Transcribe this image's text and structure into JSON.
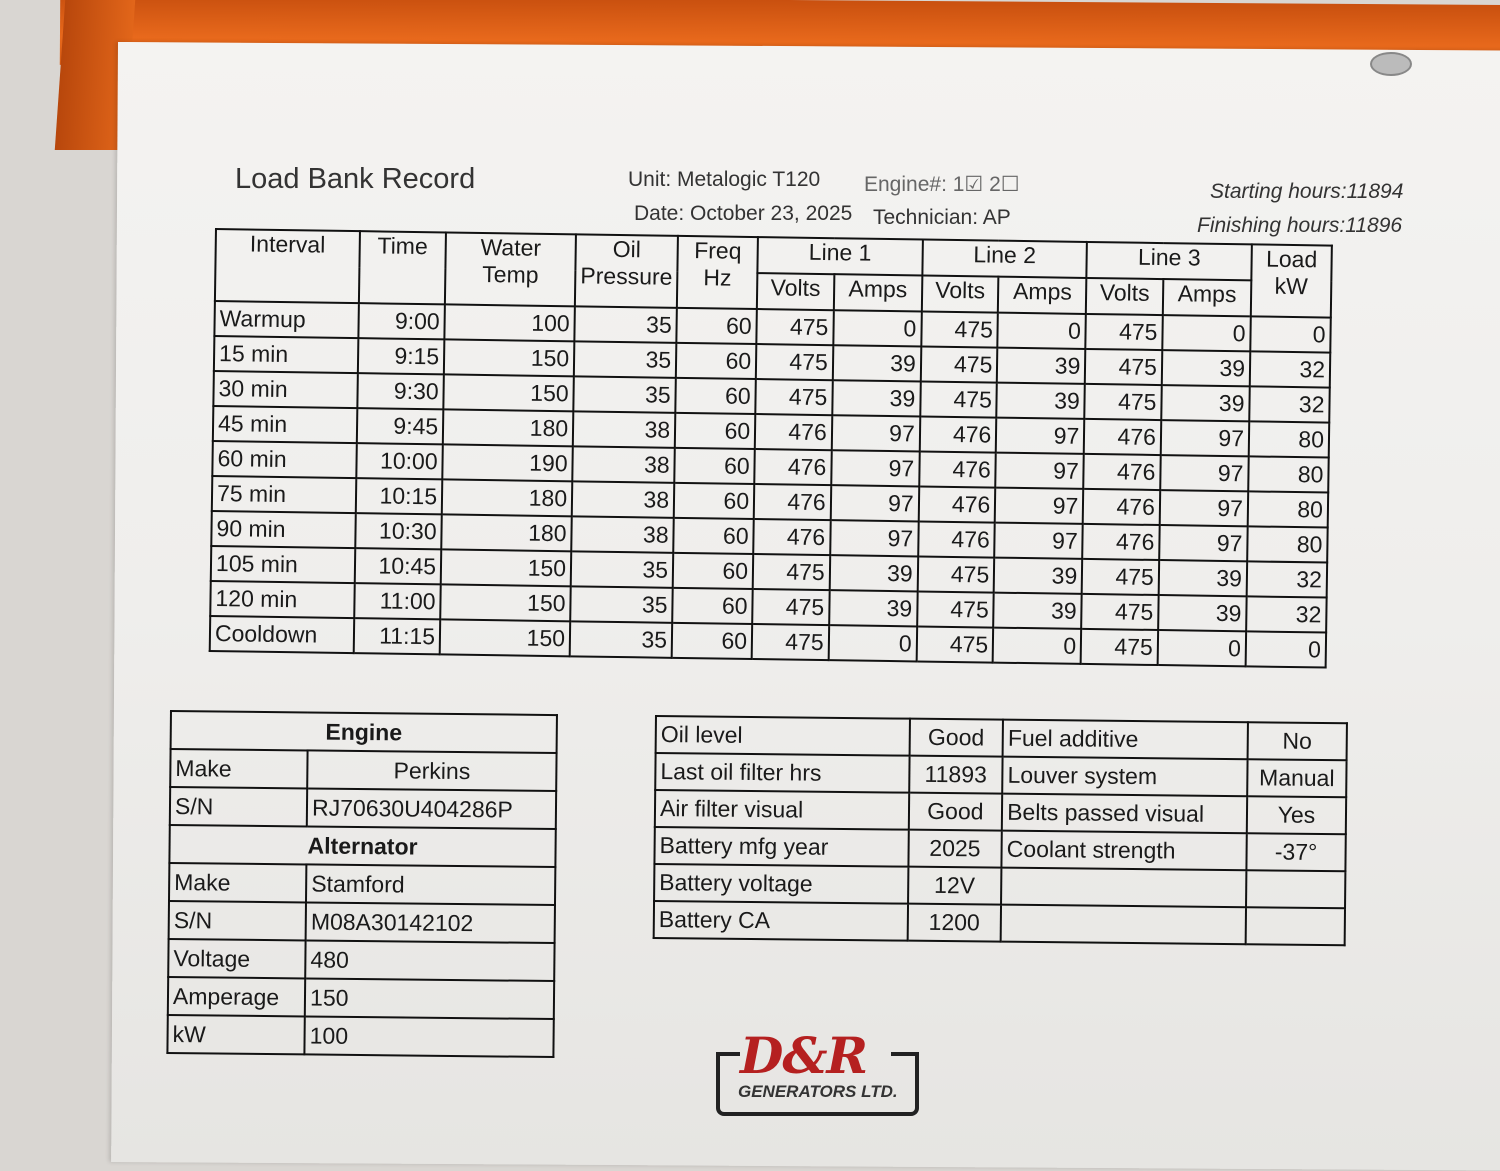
{
  "document": {
    "title": "Load Bank Record",
    "unit": "Unit: Metalogic T120",
    "engine_no": "Engine#: 1☑ 2☐",
    "date": "Date: October 23, 2025",
    "technician": "Technician: AP",
    "starting_hours": "Starting hours:11894",
    "finishing_hours": "Finishing hours:11896"
  },
  "load_table": {
    "headers": {
      "interval": "Interval",
      "time": "Time",
      "water_temp": "Water Temp",
      "oil_pressure": "Oil Pressure",
      "freq": "Freq Hz",
      "line1": "Line 1",
      "line2": "Line 2",
      "line3": "Line 3",
      "load": "Load kW",
      "volts": "Volts",
      "amps": "Amps"
    },
    "rows": [
      [
        "Warmup",
        "9:00",
        "100",
        "35",
        "60",
        "475",
        "0",
        "475",
        "0",
        "475",
        "0",
        "0"
      ],
      [
        "15 min",
        "9:15",
        "150",
        "35",
        "60",
        "475",
        "39",
        "475",
        "39",
        "475",
        "39",
        "32"
      ],
      [
        "30 min",
        "9:30",
        "150",
        "35",
        "60",
        "475",
        "39",
        "475",
        "39",
        "475",
        "39",
        "32"
      ],
      [
        "45 min",
        "9:45",
        "180",
        "38",
        "60",
        "476",
        "97",
        "476",
        "97",
        "476",
        "97",
        "80"
      ],
      [
        "60 min",
        "10:00",
        "190",
        "38",
        "60",
        "476",
        "97",
        "476",
        "97",
        "476",
        "97",
        "80"
      ],
      [
        "75 min",
        "10:15",
        "180",
        "38",
        "60",
        "476",
        "97",
        "476",
        "97",
        "476",
        "97",
        "80"
      ],
      [
        "90 min",
        "10:30",
        "180",
        "38",
        "60",
        "476",
        "97",
        "476",
        "97",
        "476",
        "97",
        "80"
      ],
      [
        "105 min",
        "10:45",
        "150",
        "35",
        "60",
        "475",
        "39",
        "475",
        "39",
        "475",
        "39",
        "32"
      ],
      [
        "120 min",
        "11:00",
        "150",
        "35",
        "60",
        "475",
        "39",
        "475",
        "39",
        "475",
        "39",
        "32"
      ],
      [
        "Cooldown",
        "11:15",
        "150",
        "35",
        "60",
        "475",
        "0",
        "475",
        "0",
        "475",
        "0",
        "0"
      ]
    ]
  },
  "engine_table": {
    "engine_heading": "Engine",
    "engine_make_label": "Make",
    "engine_make": "Perkins",
    "engine_sn_label": "S/N",
    "engine_sn": "RJ70630U404286P",
    "alternator_heading": "Alternator",
    "alt_make_label": "Make",
    "alt_make": "Stamford",
    "alt_sn_label": "S/N",
    "alt_sn": "M08A30142102",
    "voltage_label": "Voltage",
    "voltage": "480",
    "amperage_label": "Amperage",
    "amperage": "150",
    "kw_label": "kW",
    "kw": "100"
  },
  "checklist": [
    [
      "Oil level",
      "Good",
      "Fuel additive",
      "No"
    ],
    [
      "Last oil filter hrs",
      "11893",
      "Louver system",
      "Manual"
    ],
    [
      "Air filter visual",
      "Good",
      "Belts  passed visual",
      "Yes"
    ],
    [
      "Battery mfg year",
      "2025",
      "Coolant strength",
      "-37°"
    ],
    [
      "Battery voltage",
      "12V",
      "",
      ""
    ],
    [
      "Battery CA",
      "1200",
      "",
      ""
    ]
  ],
  "logo": {
    "name": "D&R",
    "sub": "GENERATORS LTD.",
    "color": "#b52020"
  }
}
